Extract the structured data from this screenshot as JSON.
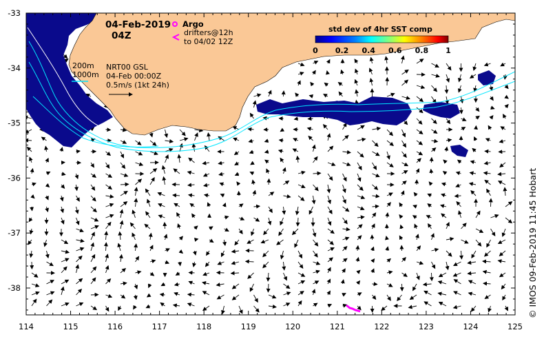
{
  "map": {
    "date": "04-Feb-2019",
    "time": "04Z",
    "argo_label": "Argo",
    "drifter_line1": "drifters@12h",
    "drifter_line2": "to 04/02 12Z",
    "depth_200": "200m",
    "depth_1000": "1000m",
    "vel_line1": "NRT00 GSL",
    "vel_line2": "04-Feb 00:00Z",
    "vel_line3": "0.5m/s (1kt 24h)",
    "credit": "© IMOS 09-Feb-2019 11:45 Hobart",
    "colorbar": {
      "title": "std dev of 4hr SST comp",
      "ticks": [
        "0",
        "0.2",
        "0.4",
        "0.6",
        "0.8",
        "1"
      ],
      "colors": [
        "#00008f",
        "#0000ff",
        "#0080ff",
        "#00ffff",
        "#80ff80",
        "#ffff00",
        "#ff8000",
        "#ff0000",
        "#800000"
      ]
    },
    "x_ticks": [
      "114",
      "115",
      "116",
      "117",
      "118",
      "119",
      "120",
      "121",
      "122",
      "123",
      "124",
      "125"
    ],
    "y_ticks": [
      "-33",
      "-34",
      "-35",
      "-36",
      "-37",
      "-38"
    ],
    "colors": {
      "land": "#fac896",
      "sst_high": "#0a0a8c",
      "contour": "#00e6ff",
      "drifter": "#ff00ff"
    }
  }
}
